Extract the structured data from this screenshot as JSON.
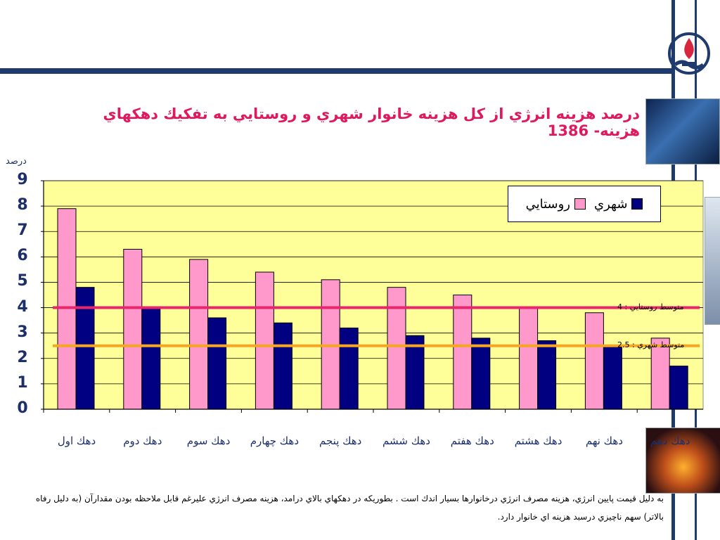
{
  "title": "درصد هزينه انرژي از كل هزينه خانوار شهري و روستايي به تفكيك دهكهاي هزينه- 1386",
  "note": "به دليل قيمت پايين انرژي، هزينه مصرف انرژي درخانوارها بسيار اندك است . بطوريكه در دهكهاي بالاي درامد، هزينه مصرف انرژي عليرغم قابل ملاحظه بودن مقدارآن (به دليل رفاه بالاتر) سهم ناچيزي درسبد هزينه اي خانوار دارد.",
  "colors": {
    "plot_bg": "#ffff99",
    "rural": "#ff99cc",
    "urban": "#000080",
    "rural_avg_line": "#e8266e",
    "urban_avg_line": "#f5a623",
    "text": "#1c2f6b",
    "title": "#e0195e"
  },
  "chart_data": {
    "type": "bar",
    "ylabel": "درصد",
    "ylim": [
      0,
      9
    ],
    "yticks": [
      "0",
      "1",
      "2",
      "3",
      "4",
      "5",
      "6",
      "7",
      "8",
      "9"
    ],
    "grid": true,
    "legend_position": "top-right",
    "categories": [
      "دهك اول",
      "دهك دوم",
      "دهك سوم",
      "دهك چهارم",
      "دهك پنجم",
      "دهك ششم",
      "دهك هفتم",
      "دهك هشتم",
      "دهك نهم",
      "دهك دهم"
    ],
    "series": [
      {
        "name": "روستايي",
        "color": "#ff99cc",
        "values": [
          7.9,
          6.3,
          5.9,
          5.4,
          5.1,
          4.8,
          4.5,
          4.0,
          3.8,
          2.8
        ]
      },
      {
        "name": "شهري",
        "color": "#000080",
        "values": [
          4.8,
          4.0,
          3.6,
          3.4,
          3.2,
          2.9,
          2.8,
          2.7,
          2.5,
          1.7
        ]
      }
    ],
    "reference_lines": [
      {
        "label": "متوسط روستايي : 4",
        "value": 4,
        "color": "#e8266e"
      },
      {
        "label": "متوسط شهري : 2.5",
        "value": 2.5,
        "color": "#f5a623"
      }
    ]
  }
}
